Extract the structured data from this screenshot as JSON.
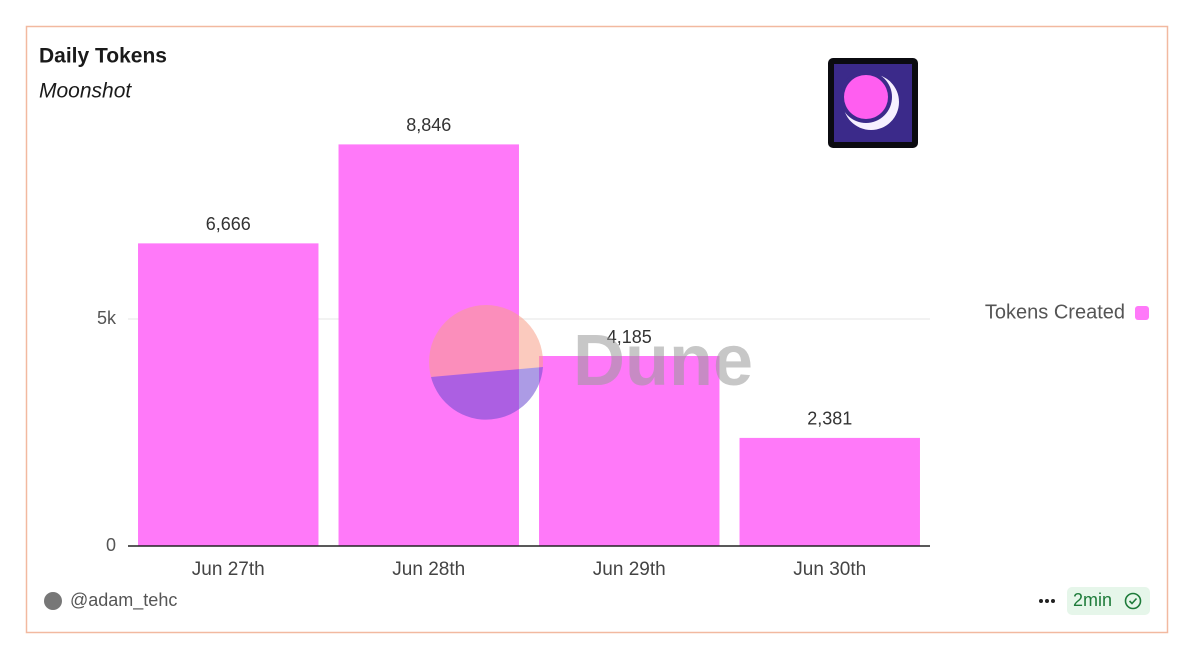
{
  "chart_data": {
    "type": "bar",
    "title": "Daily Tokens",
    "subtitle": "Moonshot",
    "categories": [
      "Jun 27th",
      "Jun 28th",
      "Jun 29th",
      "Jun 30th"
    ],
    "series": [
      {
        "name": "Tokens Created",
        "color": "#ff79f9",
        "values": [
          6666,
          8846,
          4185,
          2381
        ],
        "value_labels": [
          "6,666",
          "8,846",
          "4,185",
          "2,381"
        ]
      }
    ],
    "ylim": [
      0,
      10000
    ],
    "yticks": [
      0,
      {
        "value": 5000,
        "label": "5k"
      }
    ],
    "grid": true,
    "legend": "right"
  },
  "watermark": "Dune",
  "footer": {
    "author": "@adam_tehc",
    "refresh": "2min"
  }
}
